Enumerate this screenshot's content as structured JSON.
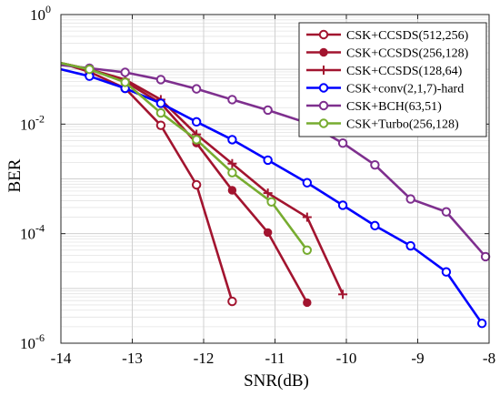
{
  "chart_data": {
    "type": "line",
    "title": "",
    "xlabel": "SNR(dB)",
    "ylabel": "BER",
    "xlim": [
      -14,
      -8
    ],
    "ylim": [
      1e-06,
      1
    ],
    "yscale": "log",
    "grid": true,
    "legend_position": "top-right",
    "x_ticks": [
      "-14",
      "-13",
      "-12",
      "-11",
      "-10",
      "-9",
      "-8"
    ],
    "y_ticks": [
      {
        "base": "10",
        "exp": "0"
      },
      {
        "base": "10",
        "exp": "-2"
      },
      {
        "base": "10",
        "exp": "-4"
      },
      {
        "base": "10",
        "exp": "-6"
      }
    ],
    "series": [
      {
        "name": "CSK+CCSDS(512,256)",
        "color": "#a2142f",
        "marker": "circle-open",
        "x": [
          -14,
          -13.6,
          -13.1,
          -12.6,
          -12.1,
          -11.6
        ],
        "y": [
          0.13,
          0.09,
          0.045,
          0.0095,
          0.00078,
          5.8e-06
        ]
      },
      {
        "name": "CSK+CCSDS(256,128)",
        "color": "#a2142f",
        "marker": "circle-filled",
        "x": [
          -14,
          -13.6,
          -13.1,
          -12.6,
          -12.1,
          -11.6,
          -11.1,
          -10.55
        ],
        "y": [
          0.13,
          0.1,
          0.06,
          0.024,
          0.0045,
          0.00062,
          0.000105,
          5.5e-06
        ]
      },
      {
        "name": "CSK+CCSDS(128,64)",
        "color": "#a2142f",
        "marker": "plus",
        "x": [
          -14,
          -13.6,
          -13.1,
          -12.6,
          -12.1,
          -11.6,
          -11.1,
          -10.55,
          -10.05
        ],
        "y": [
          0.13,
          0.1,
          0.065,
          0.028,
          0.0065,
          0.0019,
          0.00055,
          0.0002,
          7.8e-06
        ]
      },
      {
        "name": "CSK+conv(2,1,7)-hard",
        "color": "#0000ff",
        "marker": "circle-open",
        "x": [
          -14,
          -13.6,
          -13.1,
          -12.6,
          -12.1,
          -11.6,
          -11.1,
          -10.55,
          -10.05,
          -9.6,
          -9.1,
          -8.6,
          -8.1
        ],
        "y": [
          0.1,
          0.075,
          0.045,
          0.024,
          0.011,
          0.0052,
          0.0022,
          0.00085,
          0.00033,
          0.00014,
          6e-05,
          2e-05,
          2.3e-06
        ]
      },
      {
        "name": "CSK+BCH(63,51)",
        "color": "#7e2f8e",
        "marker": "circle-open",
        "x": [
          -14,
          -13.6,
          -13.1,
          -12.6,
          -12.1,
          -11.6,
          -11.1,
          -10.55,
          -10.05,
          -9.6,
          -9.1,
          -8.6,
          -8.05
        ],
        "y": [
          0.12,
          0.105,
          0.088,
          0.065,
          0.044,
          0.028,
          0.018,
          0.0105,
          0.0045,
          0.0018,
          0.00043,
          0.00025,
          3.8e-05
        ]
      },
      {
        "name": "CSK+Turbo(256,128)",
        "color": "#77ac30",
        "marker": "circle-open",
        "x": [
          -14,
          -13.6,
          -13.1,
          -12.6,
          -12.1,
          -11.6,
          -11.05,
          -10.55
        ],
        "y": [
          0.13,
          0.1,
          0.058,
          0.016,
          0.0052,
          0.0013,
          0.00038,
          5e-05
        ]
      }
    ]
  }
}
